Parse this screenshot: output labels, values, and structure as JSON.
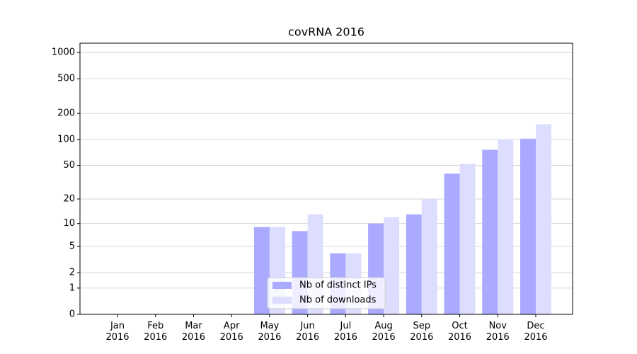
{
  "chart_data": {
    "type": "bar",
    "title": "covRNA 2016",
    "categories": [
      "Jan\n2016",
      "Feb\n2016",
      "Mar\n2016",
      "Apr\n2016",
      "May\n2016",
      "Jun\n2016",
      "Jul\n2016",
      "Aug\n2016",
      "Sep\n2016",
      "Oct\n2016",
      "Nov\n2016",
      "Dec\n2016"
    ],
    "series": [
      {
        "name": "Nb of distinct IPs",
        "color": "#aaaaff",
        "values": [
          0,
          0,
          0,
          0,
          9,
          8,
          4,
          10,
          13,
          40,
          76,
          102
        ]
      },
      {
        "name": "Nb of downloads",
        "color": "#ddddff",
        "values": [
          0,
          0,
          0,
          0,
          9,
          13,
          4,
          12,
          20,
          52,
          100,
          150
        ]
      }
    ],
    "yscale": "log1p",
    "ylim": [
      0,
      1280
    ],
    "yticks": [
      0,
      1,
      2,
      5,
      10,
      20,
      50,
      100,
      200,
      500,
      1000
    ],
    "grid": true,
    "legend": "lower center"
  }
}
